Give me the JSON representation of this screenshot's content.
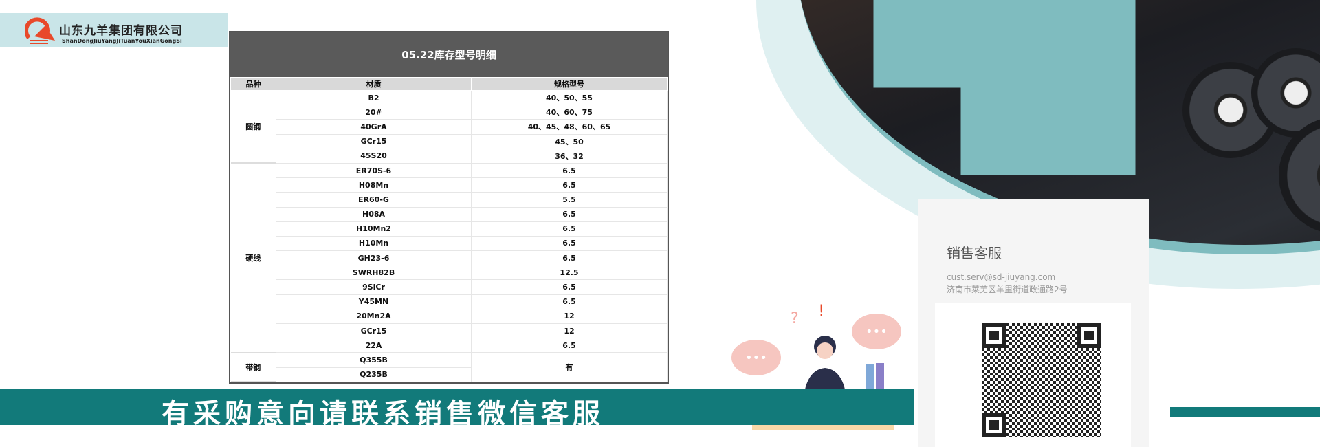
{
  "logo": {
    "name_cn": "山东九羊集团有限公司",
    "name_en": "ShanDongJiuYangJiTuanYouXianGongSi"
  },
  "table": {
    "title": "05.22库存型号明细",
    "headers": [
      "品种",
      "材质",
      "规格型号"
    ],
    "groups": [
      {
        "category": "圆钢",
        "rows": [
          [
            "B2",
            "40、50、55"
          ],
          [
            "20#",
            "40、60、75"
          ],
          [
            "40GrA",
            "40、45、48、60、65"
          ],
          [
            "GCr15",
            "45、50"
          ],
          [
            "45S20",
            "36、32"
          ]
        ]
      },
      {
        "category": "硬线",
        "rows": [
          [
            "ER70S-6",
            "6.5"
          ],
          [
            "H08Mn",
            "6.5"
          ],
          [
            "ER60-G",
            "5.5"
          ],
          [
            "H08A",
            "6.5"
          ],
          [
            "H10Mn2",
            "6.5"
          ],
          [
            "H10Mn",
            "6.5"
          ],
          [
            "GH23-6",
            "6.5"
          ],
          [
            "SWRH82B",
            "12.5"
          ],
          [
            "9SiCr",
            "6.5"
          ],
          [
            "Y45MN",
            "6.5"
          ],
          [
            "20Mn2A",
            "12"
          ],
          [
            "GCr15",
            "12"
          ],
          [
            "22A",
            "6.5"
          ]
        ]
      },
      {
        "category": "带钢",
        "rows": [
          [
            "Q355B",
            "有"
          ],
          [
            "Q235B",
            ""
          ]
        ]
      }
    ]
  },
  "banner": {
    "text": "有采购意向请联系销售微信客服"
  },
  "contact": {
    "title": "销售客服",
    "email": "cust.serv@sd-jiuyang.com",
    "address": "济南市莱芜区羊里街道政通路2号"
  },
  "colors": {
    "teal": "#127a7a",
    "logo_bg": "#c9e5e8",
    "table_title_bg": "#5a5a5a"
  }
}
